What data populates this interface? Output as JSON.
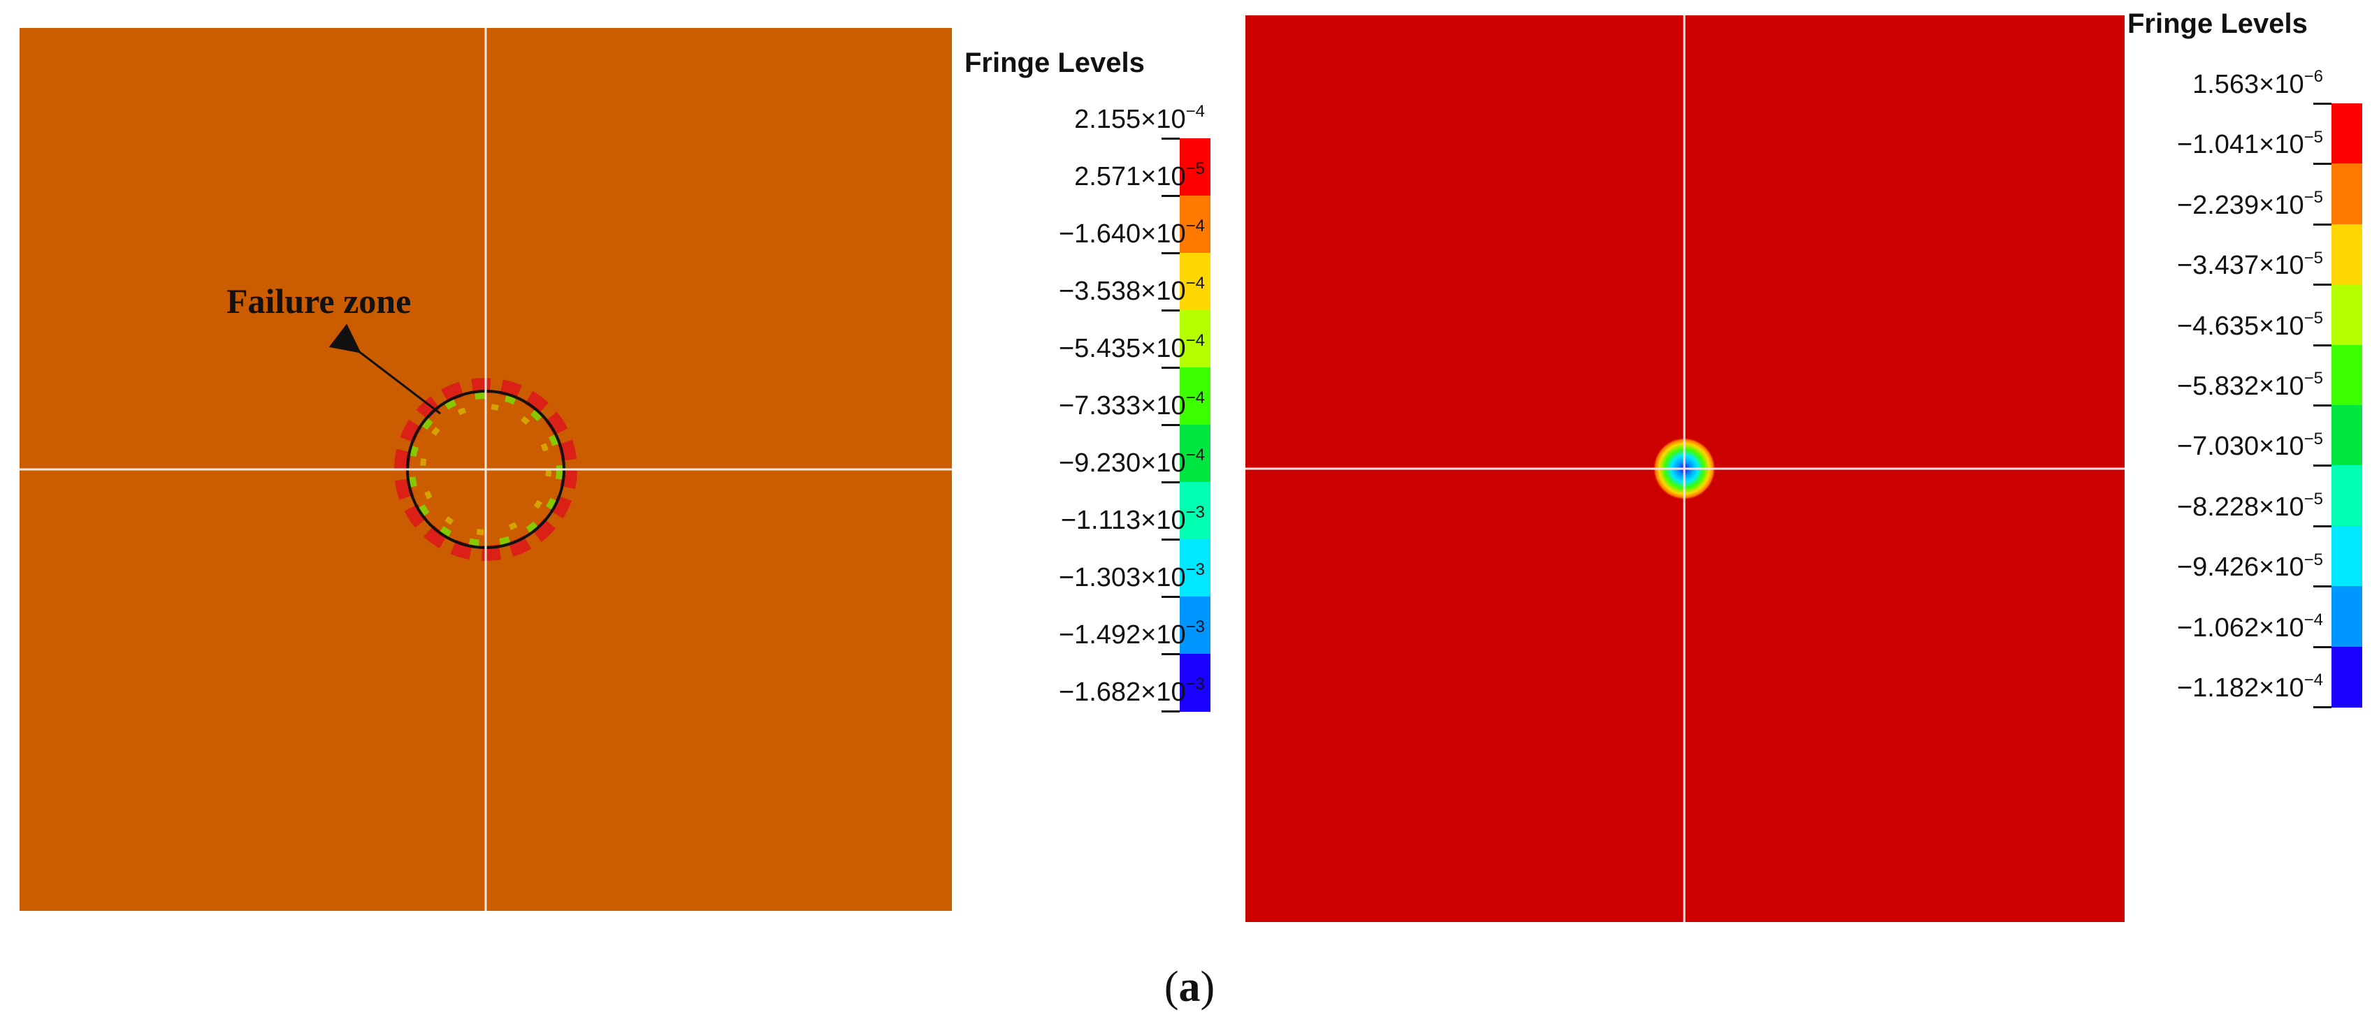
{
  "figure": {
    "caption_open": "(",
    "caption_letter": "a",
    "caption_close": ")"
  },
  "left_panel": {
    "background_color": "#cc5c00",
    "callout": "Failure zone",
    "legend": {
      "title": "Fringe Levels",
      "levels": [
        {
          "mantissa": "2.155",
          "exponent": "−4"
        },
        {
          "mantissa": "2.571",
          "exponent": "−5"
        },
        {
          "mantissa": "−1.640",
          "exponent": "−4"
        },
        {
          "mantissa": "−3.538",
          "exponent": "−4"
        },
        {
          "mantissa": "−5.435",
          "exponent": "−4"
        },
        {
          "mantissa": "−7.333",
          "exponent": "−4"
        },
        {
          "mantissa": "−9.230",
          "exponent": "−4"
        },
        {
          "mantissa": "−1.113",
          "exponent": "−3"
        },
        {
          "mantissa": "−1.303",
          "exponent": "−3"
        },
        {
          "mantissa": "−1.492",
          "exponent": "−3"
        },
        {
          "mantissa": "−1.682",
          "exponent": "−3"
        }
      ],
      "band_colors": [
        "#ff0000",
        "#ff7800",
        "#ffd700",
        "#b4ff00",
        "#3cff00",
        "#00e640",
        "#00ffb0",
        "#00e8ff",
        "#0096ff",
        "#1a00ff"
      ]
    }
  },
  "right_panel": {
    "background_color": "#cc0000",
    "legend": {
      "title": "Fringe Levels",
      "levels": [
        {
          "mantissa": "1.563",
          "exponent": "−6"
        },
        {
          "mantissa": "−1.041",
          "exponent": "−5"
        },
        {
          "mantissa": "−2.239",
          "exponent": "−5"
        },
        {
          "mantissa": "−3.437",
          "exponent": "−5"
        },
        {
          "mantissa": "−4.635",
          "exponent": "−5"
        },
        {
          "mantissa": "−5.832",
          "exponent": "−5"
        },
        {
          "mantissa": "−7.030",
          "exponent": "−5"
        },
        {
          "mantissa": "−8.228",
          "exponent": "−5"
        },
        {
          "mantissa": "−9.426",
          "exponent": "−5"
        },
        {
          "mantissa": "−1.062",
          "exponent": "−4"
        },
        {
          "mantissa": "−1.182",
          "exponent": "−4"
        }
      ],
      "band_colors": [
        "#ff0000",
        "#ff7800",
        "#ffd700",
        "#b4ff00",
        "#3cff00",
        "#00e640",
        "#00ffb0",
        "#00e8ff",
        "#0096ff",
        "#1a00ff"
      ]
    }
  }
}
